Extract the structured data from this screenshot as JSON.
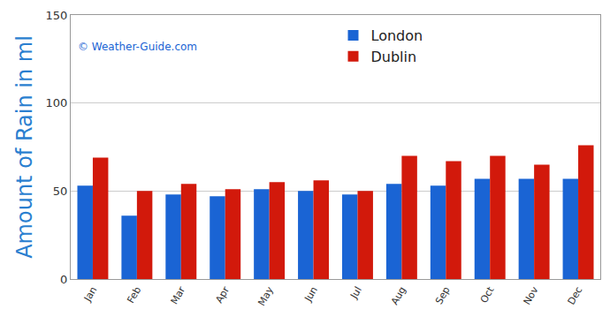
{
  "chart_data": {
    "type": "bar",
    "y_label": "Amount of Rain in ml",
    "annotations": [
      "© Weather-Guide.com"
    ],
    "categories": [
      "Jan",
      "Feb",
      "Mar",
      "Apr",
      "May",
      "Jun",
      "Jul",
      "Aug",
      "Sep",
      "Oct",
      "Nov",
      "Dec"
    ],
    "series": [
      {
        "name": "London",
        "color": "#1a64d4",
        "values": [
          53,
          36,
          48,
          47,
          51,
          50,
          48,
          54,
          53,
          57,
          57,
          57
        ]
      },
      {
        "name": "Dublin",
        "color": "#d2190b",
        "values": [
          69,
          50,
          54,
          51,
          55,
          56,
          50,
          70,
          67,
          70,
          65,
          76
        ]
      }
    ],
    "ylim": [
      0,
      150
    ],
    "yticks": [
      0,
      50,
      100,
      150
    ],
    "grid": true,
    "legend": "top"
  }
}
